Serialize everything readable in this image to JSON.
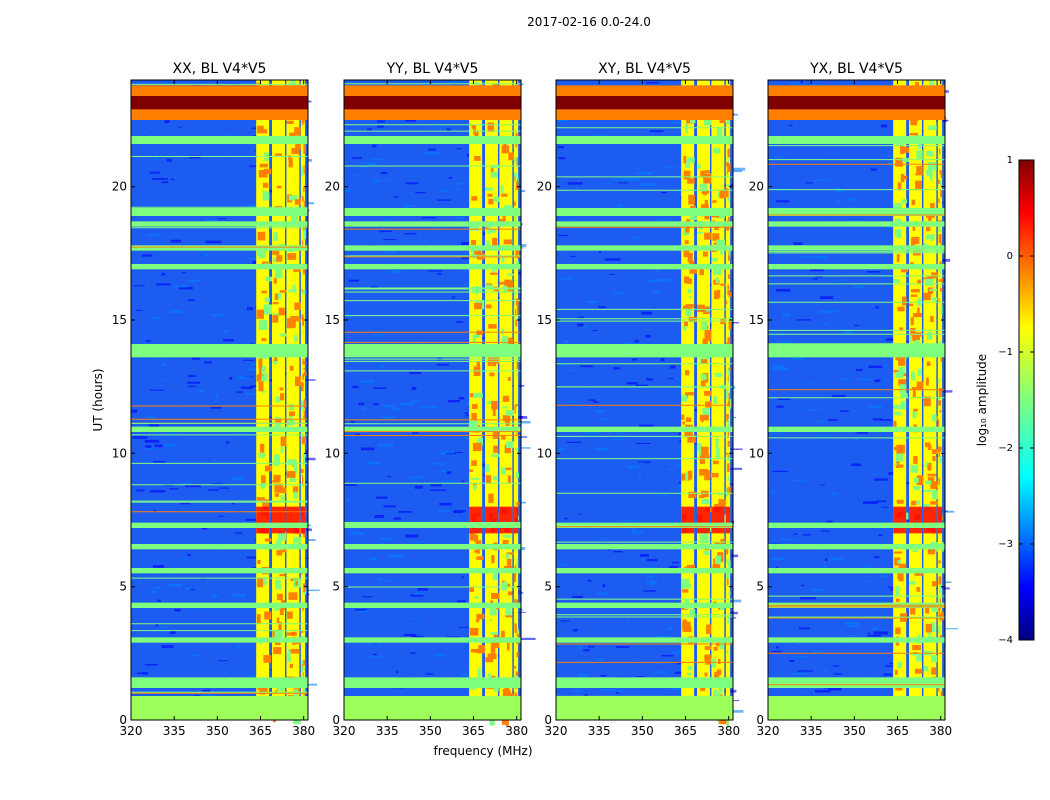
{
  "figure": {
    "suptitle": "2017-02-16 0.0-24.0",
    "xlabel": "frequency (MHz)",
    "ylabel": "UT (hours)"
  },
  "chart_data": [
    {
      "type": "heatmap",
      "title": "XX, BL V4*V5",
      "xlim": [
        320,
        381.5
      ],
      "ylim": [
        0,
        24
      ],
      "xticks": [
        320,
        335,
        350,
        365,
        380
      ],
      "yticks": [
        0,
        5,
        10,
        15,
        20
      ],
      "value": "log10 amplitude",
      "bright_channels_mhz": [
        [
          363.5,
          368.0
        ],
        [
          369.0,
          373.5
        ],
        [
          374.0,
          378.5
        ],
        [
          379.0,
          380.5
        ]
      ]
    },
    {
      "type": "heatmap",
      "title": "YY, BL V4*V5",
      "xlim": [
        320,
        381.5
      ],
      "ylim": [
        0,
        24
      ],
      "xticks": [
        320,
        335,
        350,
        365,
        380
      ],
      "yticks": [
        0,
        5,
        10,
        15,
        20
      ],
      "value": "log10 amplitude",
      "bright_channels_mhz": [
        [
          363.5,
          368.0
        ],
        [
          369.0,
          373.5
        ],
        [
          374.0,
          378.5
        ],
        [
          379.0,
          380.5
        ]
      ]
    },
    {
      "type": "heatmap",
      "title": "XY, BL V4*V5",
      "xlim": [
        320,
        381.5
      ],
      "ylim": [
        0,
        24
      ],
      "xticks": [
        320,
        335,
        350,
        365,
        380
      ],
      "yticks": [
        0,
        5,
        10,
        15,
        20
      ],
      "value": "log10 amplitude",
      "bright_channels_mhz": [
        [
          363.5,
          368.0
        ],
        [
          369.0,
          373.5
        ],
        [
          374.0,
          378.5
        ],
        [
          379.0,
          380.5
        ]
      ]
    },
    {
      "type": "heatmap",
      "title": "YX, BL V4*V5",
      "xlim": [
        320,
        381.5
      ],
      "ylim": [
        0,
        24
      ],
      "xticks": [
        320,
        335,
        350,
        365,
        380
      ],
      "yticks": [
        0,
        5,
        10,
        15,
        20
      ],
      "value": "log10 amplitude",
      "bright_channels_mhz": [
        [
          363.5,
          368.0
        ],
        [
          369.0,
          373.5
        ],
        [
          374.0,
          378.5
        ],
        [
          379.0,
          380.5
        ]
      ]
    }
  ],
  "colorbar": {
    "label": "log₁₀ amplitude",
    "range": [
      -4,
      1
    ],
    "ticks": [
      1,
      0,
      -1,
      -2,
      -3,
      -4
    ],
    "tick_labels": [
      "1",
      "0",
      "−1",
      "−2",
      "−3",
      "−4"
    ],
    "colormap": [
      "#00007f",
      "#0000ff",
      "#007fff",
      "#00ffff",
      "#7fff7f",
      "#ffff00",
      "#ff7f00",
      "#ff0000",
      "#7f0000"
    ]
  },
  "features": {
    "low_band_hours": [
      0.0,
      0.9
    ],
    "bright_rows_hours": [
      22.5,
      23.8
    ],
    "mid_rows_hours": [
      [
        1.2,
        1.6
      ],
      [
        2.9,
        3.1
      ],
      [
        4.2,
        4.4
      ],
      [
        5.5,
        5.7
      ],
      [
        6.4,
        6.6
      ],
      [
        7.2,
        7.4
      ],
      [
        10.8,
        11.0
      ],
      [
        13.6,
        14.1
      ],
      [
        16.9,
        17.1
      ],
      [
        17.6,
        17.8
      ],
      [
        18.5,
        18.7
      ],
      [
        18.9,
        19.2
      ],
      [
        21.6,
        21.9
      ]
    ]
  }
}
